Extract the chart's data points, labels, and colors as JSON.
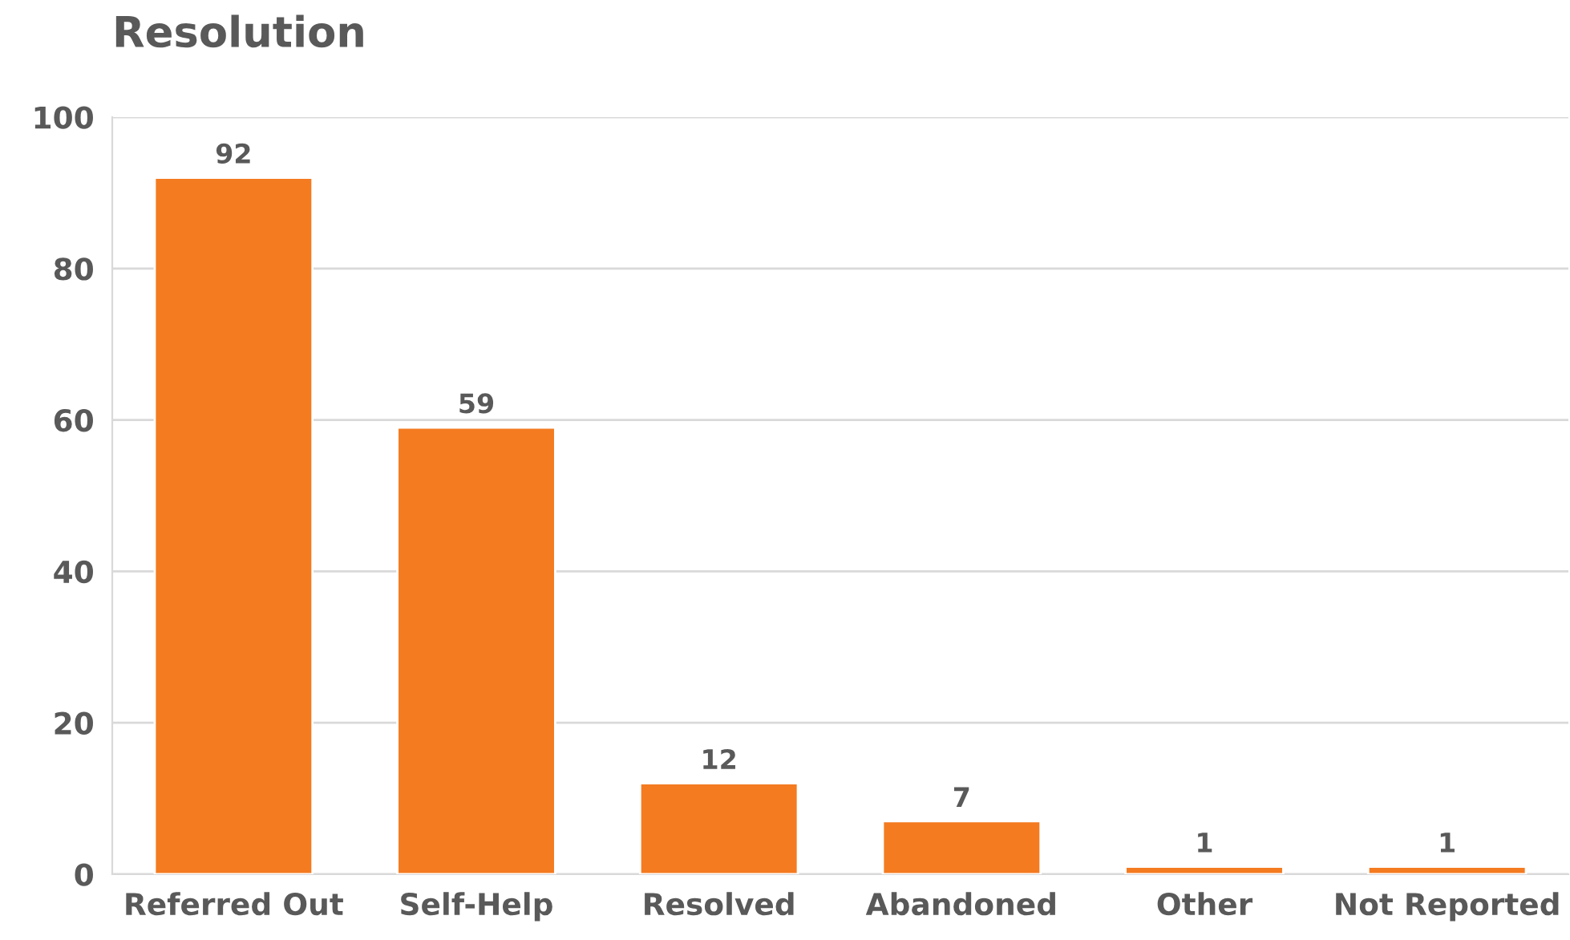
{
  "chart_data": {
    "type": "bar",
    "title": "Resolution",
    "categories": [
      "Referred Out",
      "Self-Help",
      "Resolved",
      "Abandoned",
      "Other",
      "Not Reported"
    ],
    "values": [
      92,
      59,
      12,
      7,
      1,
      1
    ],
    "color": "#f47b20",
    "ylim": [
      0,
      100
    ],
    "yticks": [
      0,
      20,
      40,
      60,
      80,
      100
    ],
    "grid": "y",
    "data_labels": true
  }
}
